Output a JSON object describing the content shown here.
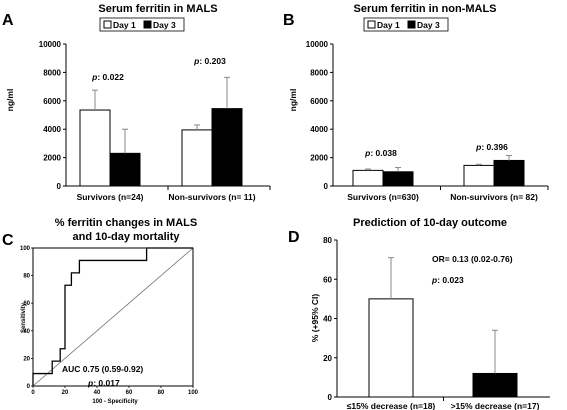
{
  "chart_data": [
    {
      "panel": "A",
      "type": "bar",
      "title": "Serum ferritin in MALS",
      "ylabel": "ng/ml",
      "ylim": [
        0,
        10000
      ],
      "yticks": [
        "0",
        "2000",
        "4000",
        "6000",
        "8000",
        "10000"
      ],
      "yticks_values": [
        0,
        2000,
        4000,
        6000,
        8000,
        10000
      ],
      "categories": [
        "Survivors (n=24)",
        "Non-survivors (n= 11)"
      ],
      "series": [
        {
          "name": "Day 1",
          "values": [
            5350,
            3950
          ],
          "errors": [
            1400,
            350
          ]
        },
        {
          "name": "Day 3",
          "values": [
            2300,
            5450
          ],
          "errors": [
            1700,
            2200
          ]
        }
      ],
      "annotations": [
        {
          "prefix": "p",
          "text": ": 0.022",
          "category": 0
        },
        {
          "prefix": "p",
          "text": ": 0.203",
          "category": 1
        }
      ],
      "legend": "top-right"
    },
    {
      "panel": "B",
      "type": "bar",
      "title": "Serum ferritin in non-MALS",
      "ylabel": "ng/ml",
      "ylim": [
        0,
        10000
      ],
      "yticks": [
        "0",
        "2000",
        "4000",
        "6000",
        "8000",
        "10000"
      ],
      "yticks_values": [
        0,
        2000,
        4000,
        6000,
        8000,
        10000
      ],
      "categories": [
        "Survivors (n=630)",
        "Non-survivors (n= 82)"
      ],
      "series": [
        {
          "name": "Day 1",
          "values": [
            1100,
            1450
          ],
          "errors": [
            100,
            80
          ]
        },
        {
          "name": "Day 3",
          "values": [
            1000,
            1800
          ],
          "errors": [
            300,
            350
          ]
        }
      ],
      "annotations": [
        {
          "prefix": "p",
          "text": ": 0.038",
          "category": 0
        },
        {
          "prefix": "p",
          "text": ": 0.396",
          "category": 1
        }
      ],
      "legend": "top-right"
    },
    {
      "panel": "C",
      "type": "line",
      "title_line1": "% ferritin changes in MALS",
      "title_line2": "and 10-day mortality",
      "xlabel": "100 - Specificity",
      "ylabel": "Sensitivity",
      "xlim": [
        0,
        100
      ],
      "ylim": [
        0,
        100
      ],
      "xticks": [
        "0",
        "20",
        "40",
        "60",
        "80",
        "100"
      ],
      "xticks_values": [
        0,
        20,
        40,
        60,
        80,
        100
      ],
      "yticks": [
        "0",
        "20",
        "40",
        "60",
        "80",
        "100"
      ],
      "yticks_values": [
        0,
        20,
        40,
        60,
        80,
        100
      ],
      "roc_x": [
        0,
        0,
        12,
        12,
        17,
        17,
        20,
        20,
        24,
        24,
        29,
        29,
        41,
        41,
        71,
        71,
        100
      ],
      "roc_y": [
        0,
        9,
        9,
        18,
        18,
        27,
        27,
        73,
        73,
        82,
        82,
        91,
        91,
        91,
        91,
        100,
        100
      ],
      "auc_text": "AUC 0.75 (0.59-0.92)",
      "p_prefix": "p",
      "p_text": ": 0.017"
    },
    {
      "panel": "D",
      "type": "bar",
      "title": "Prediction of 10-day outcome",
      "ylabel": "% (+95% CI)",
      "ylim": [
        0,
        80
      ],
      "yticks": [
        "0",
        "20",
        "40",
        "60",
        "80"
      ],
      "yticks_values": [
        0,
        20,
        40,
        60,
        80
      ],
      "categories": [
        "≤15% decrease (n=18)",
        ">15% decrease (n=17)"
      ],
      "values": [
        50,
        12
      ],
      "errors": [
        21,
        22
      ],
      "colors": [
        "#ffffff",
        "#000000"
      ],
      "or_text": "OR= 0.13 (0.02-0.76)",
      "p_prefix": "p",
      "p_text": ": 0.023"
    }
  ]
}
